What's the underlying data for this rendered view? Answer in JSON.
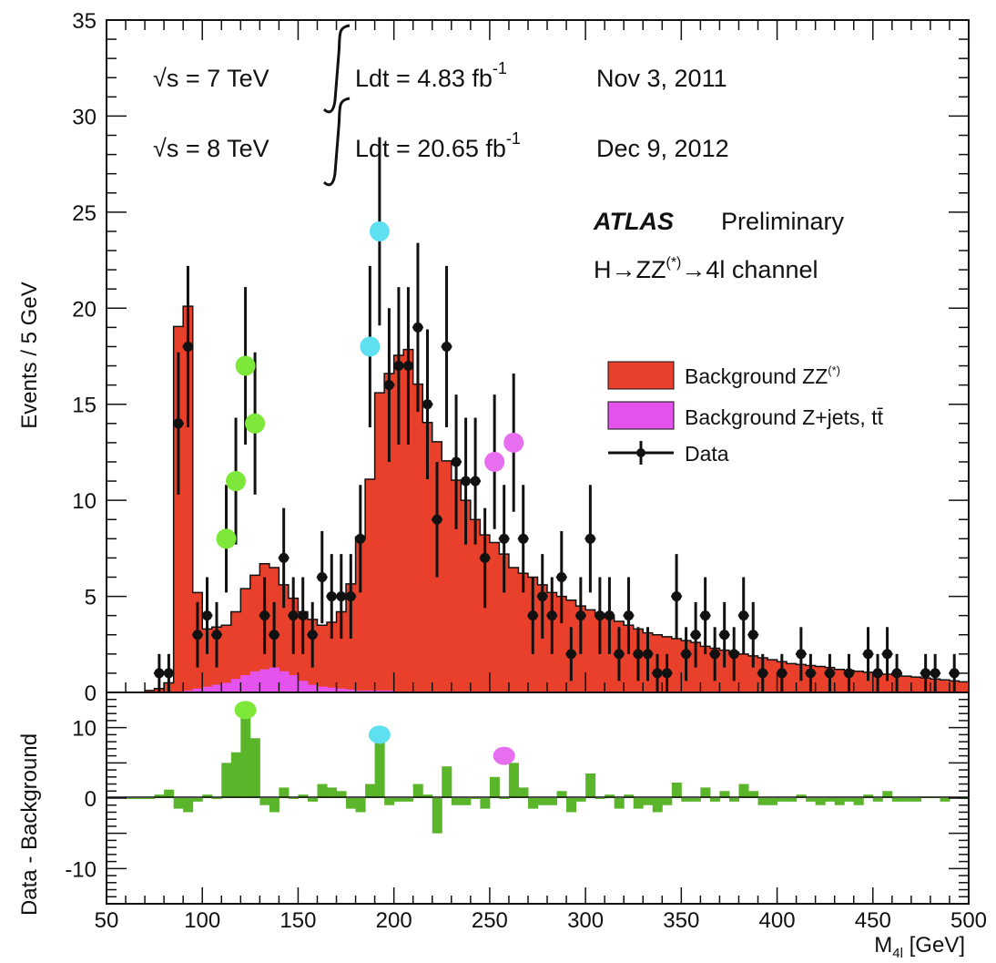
{
  "chart_data": [
    {
      "type": "bar",
      "panel": "main",
      "ylabel": "Events / 5 GeV",
      "xlim": [
        50,
        500
      ],
      "ylim": [
        0,
        35
      ],
      "xticks": [
        50,
        100,
        150,
        200,
        250,
        300,
        350,
        400,
        450,
        500
      ],
      "yticks": [
        0,
        5,
        10,
        15,
        20,
        25,
        30,
        35
      ],
      "bin_width": 5,
      "bin_low_edges": [
        70,
        75,
        80,
        85,
        90,
        95,
        100,
        105,
        110,
        115,
        120,
        125,
        130,
        135,
        140,
        145,
        150,
        155,
        160,
        165,
        170,
        175,
        180,
        185,
        190,
        195,
        200,
        205,
        210,
        215,
        220,
        225,
        230,
        235,
        240,
        245,
        250,
        255,
        260,
        265,
        270,
        275,
        280,
        285,
        290,
        295,
        300,
        305,
        310,
        315,
        320,
        325,
        330,
        335,
        340,
        345,
        350,
        355,
        360,
        365,
        370,
        375,
        380,
        385,
        390,
        395,
        400,
        405,
        410,
        415,
        420,
        425,
        430,
        435,
        440,
        445,
        450,
        455,
        460,
        465,
        470,
        475,
        480,
        485,
        490,
        495
      ],
      "series": [
        {
          "name": "Background ZZ(*)",
          "color": "#e8402a",
          "values": [
            0.1,
            0.2,
            0.5,
            19,
            20,
            5,
            3,
            3,
            3,
            3.5,
            4.5,
            5,
            5.5,
            5.2,
            4.5,
            4,
            3.6,
            3.4,
            3.2,
            3.4,
            4,
            5.5,
            8,
            11,
            15.5,
            16.5,
            17.5,
            17.8,
            16,
            14,
            13,
            12,
            11,
            10,
            9,
            8.2,
            7.8,
            7.2,
            6.5,
            6.2,
            6,
            5.6,
            5.2,
            5,
            4.8,
            4.5,
            4.3,
            4.1,
            3.9,
            3.7,
            3.5,
            3.3,
            3.1,
            3,
            2.9,
            2.8,
            2.7,
            2.6,
            2.4,
            2.3,
            2.2,
            2.1,
            2,
            1.9,
            1.8,
            1.7,
            1.6,
            1.5,
            1.45,
            1.4,
            1.35,
            1.3,
            1.2,
            1.15,
            1.1,
            1.05,
            1,
            0.95,
            0.9,
            0.85,
            0.8,
            0.75,
            0.7,
            0.65,
            0.6,
            0.55
          ]
        },
        {
          "name": "Background Z+jets, tt̄",
          "color": "#e553ee",
          "values": [
            0,
            0,
            0,
            0.05,
            0.1,
            0.2,
            0.3,
            0.4,
            0.5,
            0.7,
            0.9,
            1.1,
            1.2,
            1.3,
            1.1,
            0.9,
            0.6,
            0.4,
            0.3,
            0.25,
            0.2,
            0.15,
            0.1,
            0.1,
            0.1,
            0.1,
            0.05,
            0.05,
            0.05,
            0.05,
            0.05,
            0.05,
            0.05,
            0,
            0,
            0,
            0,
            0,
            0,
            0,
            0,
            0,
            0,
            0,
            0,
            0,
            0,
            0,
            0,
            0,
            0,
            0,
            0,
            0,
            0,
            0,
            0,
            0,
            0,
            0,
            0,
            0,
            0,
            0,
            0,
            0,
            0,
            0,
            0,
            0,
            0,
            0,
            0,
            0,
            0,
            0,
            0,
            0,
            0,
            0,
            0,
            0,
            0,
            0,
            0,
            0
          ]
        }
      ],
      "data": {
        "name": "Data",
        "points": [
          {
            "x": 77.5,
            "y": 1,
            "err": 1
          },
          {
            "x": 82.5,
            "y": 1,
            "err": 1
          },
          {
            "x": 87.5,
            "y": 14,
            "err": 3.7
          },
          {
            "x": 92.5,
            "y": 18,
            "err": 4.2
          },
          {
            "x": 97.5,
            "y": 3,
            "err": 1.7
          },
          {
            "x": 102.5,
            "y": 4,
            "err": 2
          },
          {
            "x": 107.5,
            "y": 3,
            "err": 1.7
          },
          {
            "x": 112.5,
            "y": 8,
            "err": 2.8
          },
          {
            "x": 117.5,
            "y": 11,
            "err": 3.3
          },
          {
            "x": 122.5,
            "y": 17,
            "err": 4.1
          },
          {
            "x": 127.5,
            "y": 14,
            "err": 3.7
          },
          {
            "x": 132.5,
            "y": 4,
            "err": 2
          },
          {
            "x": 137.5,
            "y": 3,
            "err": 1.7
          },
          {
            "x": 142.5,
            "y": 7,
            "err": 2.6
          },
          {
            "x": 147.5,
            "y": 4,
            "err": 2
          },
          {
            "x": 152.5,
            "y": 4,
            "err": 2
          },
          {
            "x": 157.5,
            "y": 3,
            "err": 1.7
          },
          {
            "x": 162.5,
            "y": 6,
            "err": 2.4
          },
          {
            "x": 167.5,
            "y": 5,
            "err": 2.2
          },
          {
            "x": 172.5,
            "y": 5,
            "err": 2.2
          },
          {
            "x": 177.5,
            "y": 5,
            "err": 2.2
          },
          {
            "x": 182.5,
            "y": 8,
            "err": 2.8
          },
          {
            "x": 187.5,
            "y": 18,
            "err": 4.2
          },
          {
            "x": 192.5,
            "y": 24,
            "err": 4.9
          },
          {
            "x": 197.5,
            "y": 16,
            "err": 4
          },
          {
            "x": 202.5,
            "y": 17,
            "err": 4.1
          },
          {
            "x": 207.5,
            "y": 17,
            "err": 4.1
          },
          {
            "x": 212.5,
            "y": 19,
            "err": 4.4
          },
          {
            "x": 217.5,
            "y": 15,
            "err": 3.9
          },
          {
            "x": 222.5,
            "y": 9,
            "err": 3
          },
          {
            "x": 227.5,
            "y": 18,
            "err": 4.2
          },
          {
            "x": 232.5,
            "y": 12,
            "err": 3.5
          },
          {
            "x": 237.5,
            "y": 11,
            "err": 3.3
          },
          {
            "x": 242.5,
            "y": 11,
            "err": 3.3
          },
          {
            "x": 247.5,
            "y": 7,
            "err": 2.6
          },
          {
            "x": 252.5,
            "y": 12,
            "err": 3.5
          },
          {
            "x": 257.5,
            "y": 8,
            "err": 2.8
          },
          {
            "x": 262.5,
            "y": 13,
            "err": 3.6
          },
          {
            "x": 267.5,
            "y": 8,
            "err": 2.8
          },
          {
            "x": 272.5,
            "y": 4,
            "err": 2
          },
          {
            "x": 277.5,
            "y": 5,
            "err": 2.2
          },
          {
            "x": 282.5,
            "y": 4,
            "err": 2
          },
          {
            "x": 287.5,
            "y": 6,
            "err": 2.4
          },
          {
            "x": 292.5,
            "y": 2,
            "err": 1.4
          },
          {
            "x": 297.5,
            "y": 4,
            "err": 2
          },
          {
            "x": 302.5,
            "y": 8,
            "err": 2.8
          },
          {
            "x": 307.5,
            "y": 4,
            "err": 2
          },
          {
            "x": 312.5,
            "y": 4,
            "err": 2
          },
          {
            "x": 317.5,
            "y": 2,
            "err": 1.4
          },
          {
            "x": 322.5,
            "y": 4,
            "err": 2
          },
          {
            "x": 327.5,
            "y": 2,
            "err": 1.4
          },
          {
            "x": 332.5,
            "y": 2,
            "err": 1.4
          },
          {
            "x": 337.5,
            "y": 1,
            "err": 1
          },
          {
            "x": 342.5,
            "y": 1,
            "err": 1
          },
          {
            "x": 347.5,
            "y": 5,
            "err": 2.2
          },
          {
            "x": 352.5,
            "y": 2,
            "err": 1.4
          },
          {
            "x": 357.5,
            "y": 3,
            "err": 1.7
          },
          {
            "x": 362.5,
            "y": 4,
            "err": 2
          },
          {
            "x": 367.5,
            "y": 2,
            "err": 1.4
          },
          {
            "x": 372.5,
            "y": 3,
            "err": 1.7
          },
          {
            "x": 377.5,
            "y": 2,
            "err": 1.4
          },
          {
            "x": 382.5,
            "y": 4,
            "err": 2
          },
          {
            "x": 387.5,
            "y": 3,
            "err": 1.7
          },
          {
            "x": 392.5,
            "y": 1,
            "err": 1
          },
          {
            "x": 402.5,
            "y": 1,
            "err": 1
          },
          {
            "x": 412.5,
            "y": 2,
            "err": 1.4
          },
          {
            "x": 417.5,
            "y": 1,
            "err": 1
          },
          {
            "x": 427.5,
            "y": 1,
            "err": 1
          },
          {
            "x": 437.5,
            "y": 1,
            "err": 1
          },
          {
            "x": 447.5,
            "y": 2,
            "err": 1.4
          },
          {
            "x": 452.5,
            "y": 1,
            "err": 1
          },
          {
            "x": 457.5,
            "y": 2,
            "err": 1.4
          },
          {
            "x": 462.5,
            "y": 1,
            "err": 1
          },
          {
            "x": 477.5,
            "y": 1,
            "err": 1
          },
          {
            "x": 482.5,
            "y": 1,
            "err": 1
          },
          {
            "x": 492.5,
            "y": 1,
            "err": 1
          }
        ]
      },
      "highlight_markers": [
        {
          "x": 112.5,
          "y": 8,
          "color": "#7ee83a"
        },
        {
          "x": 117.5,
          "y": 11,
          "color": "#7ee83a"
        },
        {
          "x": 122.5,
          "y": 17,
          "color": "#7ee83a"
        },
        {
          "x": 127.5,
          "y": 14,
          "color": "#7ee83a"
        },
        {
          "x": 187.5,
          "y": 18,
          "color": "#5ee0f0"
        },
        {
          "x": 192.5,
          "y": 24,
          "color": "#5ee0f0"
        },
        {
          "x": 252.5,
          "y": 12,
          "color": "#e86ef0"
        },
        {
          "x": 262.5,
          "y": 13,
          "color": "#e86ef0"
        }
      ],
      "legend": {
        "placement": "right",
        "entries": [
          "Background ZZ(*)",
          "Background Z+jets, tt̄",
          "Data"
        ]
      }
    },
    {
      "type": "bar",
      "panel": "ratio",
      "ylabel": "Data - Background",
      "xlabel": "M4l [GeV]",
      "xlim": [
        50,
        500
      ],
      "ylim": [
        -15,
        15
      ],
      "yticks": [
        -10,
        0,
        10
      ],
      "bar_color": "#5ab52a",
      "values": [
        {
          "x": 62.5,
          "y": 0
        },
        {
          "x": 67.5,
          "y": 0
        },
        {
          "x": 72.5,
          "y": 0
        },
        {
          "x": 77.5,
          "y": 0.5
        },
        {
          "x": 82.5,
          "y": 1.2
        },
        {
          "x": 87.5,
          "y": -1.5
        },
        {
          "x": 92.5,
          "y": -2
        },
        {
          "x": 97.5,
          "y": -0.5
        },
        {
          "x": 102.5,
          "y": 0.5
        },
        {
          "x": 107.5,
          "y": 0
        },
        {
          "x": 112.5,
          "y": 5
        },
        {
          "x": 117.5,
          "y": 6.5
        },
        {
          "x": 122.5,
          "y": 12
        },
        {
          "x": 127.5,
          "y": 8.5
        },
        {
          "x": 132.5,
          "y": -1
        },
        {
          "x": 137.5,
          "y": -2
        },
        {
          "x": 142.5,
          "y": 1.5
        },
        {
          "x": 147.5,
          "y": 0
        },
        {
          "x": 152.5,
          "y": 0.5
        },
        {
          "x": 157.5,
          "y": -0.5
        },
        {
          "x": 162.5,
          "y": 2
        },
        {
          "x": 167.5,
          "y": 1.5
        },
        {
          "x": 172.5,
          "y": 1
        },
        {
          "x": 177.5,
          "y": -1.5
        },
        {
          "x": 182.5,
          "y": -2
        },
        {
          "x": 187.5,
          "y": 2
        },
        {
          "x": 192.5,
          "y": 8.5
        },
        {
          "x": 197.5,
          "y": -1
        },
        {
          "x": 202.5,
          "y": -0.5
        },
        {
          "x": 207.5,
          "y": -0.5
        },
        {
          "x": 212.5,
          "y": 2
        },
        {
          "x": 217.5,
          "y": 0.5
        },
        {
          "x": 222.5,
          "y": -5
        },
        {
          "x": 227.5,
          "y": 4.5
        },
        {
          "x": 232.5,
          "y": -1
        },
        {
          "x": 237.5,
          "y": -1
        },
        {
          "x": 242.5,
          "y": 0
        },
        {
          "x": 247.5,
          "y": -1.5
        },
        {
          "x": 252.5,
          "y": 3
        },
        {
          "x": 257.5,
          "y": 0
        },
        {
          "x": 262.5,
          "y": 5
        },
        {
          "x": 267.5,
          "y": 1.5
        },
        {
          "x": 272.5,
          "y": -1.5
        },
        {
          "x": 277.5,
          "y": -1
        },
        {
          "x": 282.5,
          "y": -1
        },
        {
          "x": 287.5,
          "y": 1
        },
        {
          "x": 292.5,
          "y": -2
        },
        {
          "x": 297.5,
          "y": -0.5
        },
        {
          "x": 302.5,
          "y": 3.5
        },
        {
          "x": 307.5,
          "y": 0
        },
        {
          "x": 312.5,
          "y": 0.5
        },
        {
          "x": 317.5,
          "y": -1.5
        },
        {
          "x": 322.5,
          "y": 0.5
        },
        {
          "x": 327.5,
          "y": -1.5
        },
        {
          "x": 332.5,
          "y": -1
        },
        {
          "x": 337.5,
          "y": -2
        },
        {
          "x": 342.5,
          "y": -1
        },
        {
          "x": 347.5,
          "y": 2.2
        },
        {
          "x": 352.5,
          "y": -0.5
        },
        {
          "x": 357.5,
          "y": -0.5
        },
        {
          "x": 362.5,
          "y": 1.5
        },
        {
          "x": 367.5,
          "y": -0.5
        },
        {
          "x": 372.5,
          "y": 1
        },
        {
          "x": 377.5,
          "y": -0.5
        },
        {
          "x": 382.5,
          "y": 2
        },
        {
          "x": 387.5,
          "y": 1
        },
        {
          "x": 392.5,
          "y": -1
        },
        {
          "x": 397.5,
          "y": -1
        },
        {
          "x": 402.5,
          "y": -0.5
        },
        {
          "x": 407.5,
          "y": -0.5
        },
        {
          "x": 412.5,
          "y": 0.5
        },
        {
          "x": 417.5,
          "y": -0.5
        },
        {
          "x": 422.5,
          "y": -1
        },
        {
          "x": 427.5,
          "y": -0.5
        },
        {
          "x": 432.5,
          "y": -1
        },
        {
          "x": 437.5,
          "y": -0.5
        },
        {
          "x": 442.5,
          "y": -1
        },
        {
          "x": 447.5,
          "y": 0.5
        },
        {
          "x": 452.5,
          "y": -0.5
        },
        {
          "x": 457.5,
          "y": 1
        },
        {
          "x": 462.5,
          "y": -0.5
        },
        {
          "x": 467.5,
          "y": -0.5
        },
        {
          "x": 472.5,
          "y": -0.5
        },
        {
          "x": 477.5,
          "y": 0.2
        },
        {
          "x": 482.5,
          "y": 0.2
        },
        {
          "x": 487.5,
          "y": -0.5
        },
        {
          "x": 492.5,
          "y": 0.2
        },
        {
          "x": 497.5,
          "y": 0
        }
      ],
      "highlight_markers": [
        {
          "x": 122.5,
          "y": 12.5,
          "color": "#7ee83a"
        },
        {
          "x": 192.5,
          "y": 9,
          "color": "#5ee0f0"
        },
        {
          "x": 257.5,
          "y": 6,
          "color": "#e86ef0"
        }
      ]
    }
  ],
  "annotations": {
    "row1": {
      "energy": "√s = 7 TeV",
      "lumi": "Ldt = 4.83 fb",
      "lumi_exp": "-1",
      "date": "Nov  3, 2011"
    },
    "row2": {
      "energy": "√s = 8 TeV",
      "lumi": "Ldt = 20.65 fb",
      "lumi_exp": "-1",
      "date": "Dec  9, 2012"
    },
    "experiment": "ATLAS",
    "status": "Preliminary",
    "channel": {
      "h": "H",
      "arrow1": "→",
      "zz": "ZZ",
      "star": "(*)",
      "arrow2": "→",
      "rest": "4l channel"
    }
  },
  "legend_labels": {
    "zz": {
      "text": "Background ZZ",
      "sup": "(*)"
    },
    "zjets": {
      "text": "Background Z+jets, tt̄"
    },
    "data": {
      "text": "Data"
    }
  },
  "axes_text": {
    "x_main": "M",
    "x_sub": "4l",
    "x_unit": " [GeV]"
  }
}
